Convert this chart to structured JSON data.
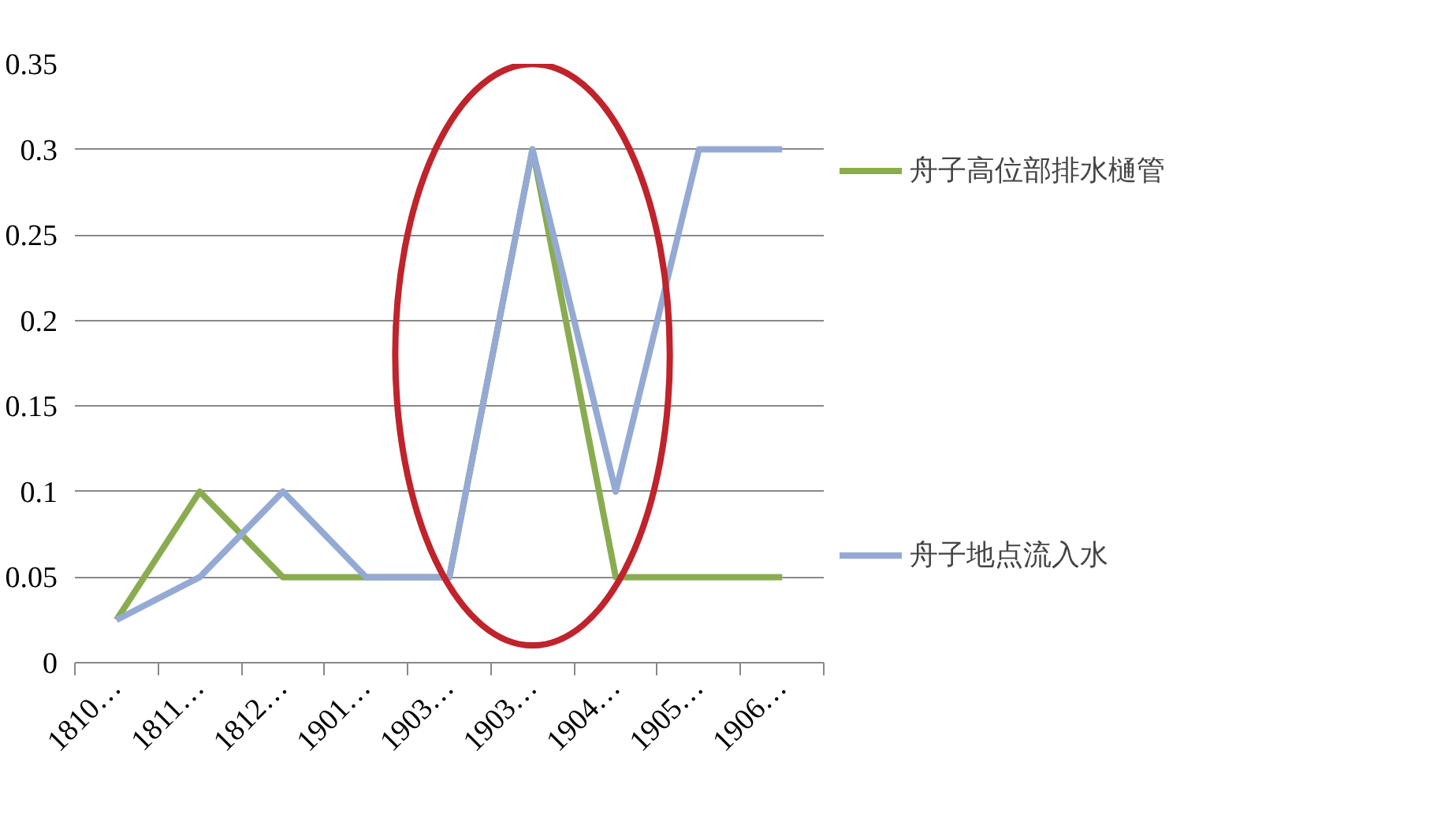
{
  "chart_data": {
    "type": "line",
    "categories": [
      "1810…",
      "1811…",
      "1812…",
      "1901…",
      "1903…",
      "1903…",
      "1904…",
      "1905…",
      "1906…"
    ],
    "series": [
      {
        "name": "舟子高位部排水樋管",
        "color": "#8aac50",
        "values": [
          0.025,
          0.1,
          0.05,
          0.05,
          0.05,
          0.3,
          0.05,
          0.05,
          0.05
        ]
      },
      {
        "name": "舟子地点流入水",
        "color": "#94aad4",
        "values": [
          0.025,
          0.05,
          0.1,
          0.05,
          0.05,
          0.3,
          0.1,
          0.3,
          0.3
        ]
      }
    ],
    "ylim": [
      0,
      0.35
    ],
    "yticks": [
      0,
      0.05,
      0.1,
      0.15,
      0.2,
      0.25,
      0.3,
      0.35
    ],
    "grid": "y",
    "legend": "right",
    "marker": "none",
    "line_style": "solid"
  }
}
